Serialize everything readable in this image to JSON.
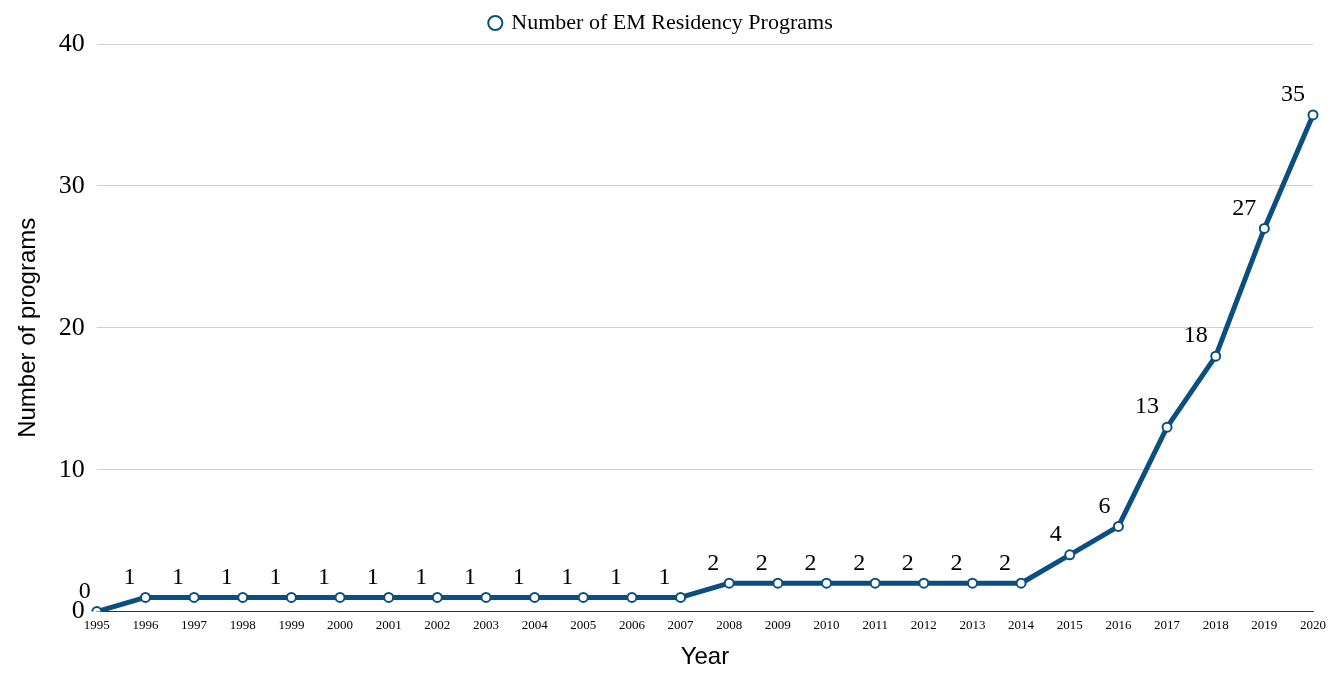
{
  "chart_data": {
    "type": "line",
    "xlabel": "Year",
    "ylabel": "Number of programs",
    "categories": [
      "1995",
      "1996",
      "1997",
      "1998",
      "1999",
      "2000",
      "2001",
      "2002",
      "2003",
      "2004",
      "2005",
      "2006",
      "2007",
      "2008",
      "2009",
      "2010",
      "2011",
      "2012",
      "2013",
      "2014",
      "2015",
      "2016",
      "2017",
      "2018",
      "2019",
      "2020"
    ],
    "series": [
      {
        "name": "Number of EM Residency Programs",
        "color": "#0b4f80",
        "values": [
          0,
          1,
          1,
          1,
          1,
          1,
          1,
          1,
          1,
          1,
          1,
          1,
          1,
          2,
          2,
          2,
          2,
          2,
          2,
          2,
          4,
          6,
          13,
          18,
          27,
          35
        ]
      }
    ],
    "ylim": [
      0,
      40
    ],
    "yticks": [
      0,
      10,
      20,
      30,
      40
    ],
    "grid": "y",
    "legend": "top",
    "marker": "circle",
    "line_style": "solid",
    "data_labels": true
  }
}
